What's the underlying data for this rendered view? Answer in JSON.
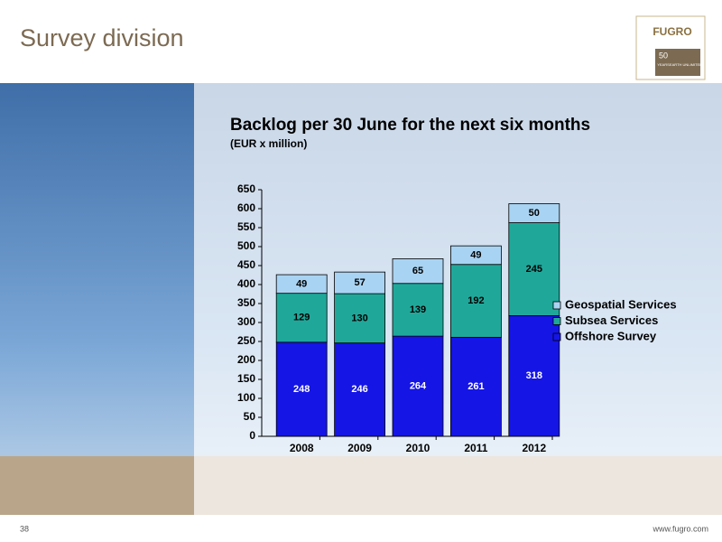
{
  "slide_title": "Survey division",
  "logo": {
    "name": "FUGRO",
    "years": "50",
    "years_word": "YEARS",
    "tagline": "EARTH UNLIMITED"
  },
  "footer": {
    "page": "38",
    "url": "www.fugro.com"
  },
  "chart_data": {
    "type": "stacked_bar",
    "title": "Backlog per 30 June for the next six months",
    "subtitle": "(EUR x million)",
    "categories": [
      "2008",
      "2009",
      "2010",
      "2011",
      "2012"
    ],
    "series": [
      {
        "name": "Offshore Survey",
        "color": "#1515e6",
        "values": [
          248,
          246,
          264,
          261,
          318
        ]
      },
      {
        "name": "Subsea Services",
        "color": "#1fa89a",
        "values": [
          129,
          130,
          139,
          192,
          245
        ]
      },
      {
        "name": "Geospatial Services",
        "color": "#a9d3f2",
        "values": [
          49,
          57,
          65,
          49,
          50
        ]
      }
    ],
    "ylim": [
      0,
      650
    ],
    "yticks": [
      0,
      50,
      100,
      150,
      200,
      250,
      300,
      350,
      400,
      450,
      500,
      550,
      600,
      650
    ]
  }
}
